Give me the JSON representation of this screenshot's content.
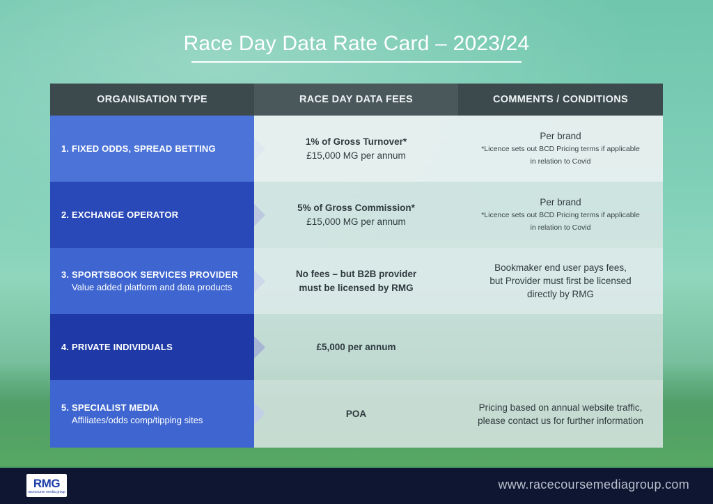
{
  "page": {
    "title": "Race Day Data Rate Card – 2023/24"
  },
  "table": {
    "headers": {
      "organisation": "ORGANISATION TYPE",
      "fees": "RACE DAY DATA FEES",
      "comments": "COMMENTS / CONDITIONS"
    },
    "rows": [
      {
        "org": "1. FIXED ODDS, SPREAD BETTING",
        "org_sub": "",
        "fee_line1": "1% of Gross Turnover*",
        "fee_line2": "£15,000 MG per annum",
        "comment_line1": "Per brand",
        "comment_line2": "*Licence sets out BCD Pricing terms if applicable",
        "comment_line3": "in relation to Covid"
      },
      {
        "org": "2. EXCHANGE OPERATOR",
        "org_sub": "",
        "fee_line1": "5% of Gross Commission*",
        "fee_line2": "£15,000 MG per annum",
        "comment_line1": "Per brand",
        "comment_line2": "*Licence sets out BCD Pricing terms if applicable",
        "comment_line3": "in relation to Covid"
      },
      {
        "org": "3. SPORTSBOOK SERVICES PROVIDER",
        "org_sub": "Value added platform and data products",
        "fee_line1": "No fees – but B2B provider",
        "fee_line2": "must be licensed by RMG",
        "comment_line1": "Bookmaker end user pays fees,",
        "comment_line2": "but Provider must first be licensed",
        "comment_line3": "directly by RMG"
      },
      {
        "org": "4. PRIVATE INDIVIDUALS",
        "org_sub": "",
        "fee_line1": "£5,000 per annum",
        "fee_line2": "",
        "comment_line1": "",
        "comment_line2": "",
        "comment_line3": ""
      },
      {
        "org": "5. SPECIALIST MEDIA",
        "org_sub": "Affiliates/odds comp/tipping sites",
        "fee_line1": "POA",
        "fee_line2": "",
        "comment_line1": "Pricing based on annual website traffic,",
        "comment_line2": "please contact us for further information",
        "comment_line3": ""
      }
    ]
  },
  "footer": {
    "logo_text": "RMG",
    "logo_subtext": "racecourse media group",
    "url": "www.racecoursemediagroup.com"
  },
  "colors": {
    "header_bg": "#3c4a4e",
    "org_blue_light": "#4b73d8",
    "org_blue_dark": "#1f3aa6",
    "footer_bg": "#0e1632"
  },
  "icons": {
    "row_arrow": "chevron-right-arrow"
  }
}
